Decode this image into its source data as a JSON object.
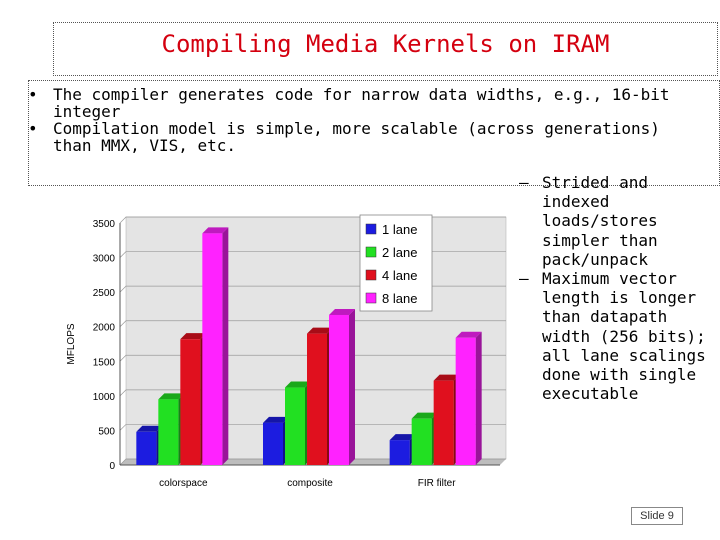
{
  "slide": {
    "title": "Compiling Media Kernels on IRAM",
    "bullets": [
      "The compiler generates code for narrow data widths, e.g., 16-bit integer",
      "Compilation model is simple, more scalable (across generations) than MMX, VIS, etc."
    ],
    "bullet_marker": "•",
    "sub_bullets": [
      "Strided and indexed loads/stores simpler than pack/unpack",
      "Maximum vector length is longer than datapath width (256 bits); all lane scalings done with single executable"
    ],
    "sub_marker": "–",
    "slide_number": "Slide 9"
  },
  "chart_data": {
    "type": "bar",
    "categories": [
      "colorspace",
      "composite",
      "FIR filter"
    ],
    "series": [
      {
        "name": "1 lane",
        "color": "#1c1ce0",
        "values": [
          480,
          610,
          360
        ]
      },
      {
        "name": "2 lane",
        "color": "#22e022",
        "values": [
          950,
          1120,
          670
        ]
      },
      {
        "name": "4 lane",
        "color": "#e0101e",
        "values": [
          1820,
          1900,
          1220
        ]
      },
      {
        "name": "8 lane",
        "color": "#ff22ff",
        "values": [
          3350,
          2170,
          1840
        ]
      }
    ],
    "ylabel": "MFLOPS",
    "xlabel": "",
    "ylim": [
      0,
      3500
    ],
    "yticks": [
      0,
      500,
      1000,
      1500,
      2000,
      2500,
      3000,
      3500
    ],
    "grid": true,
    "legend": "top-right"
  }
}
